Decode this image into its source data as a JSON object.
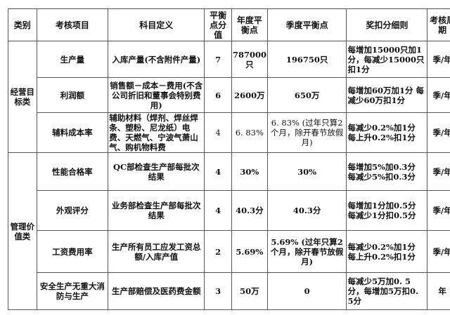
{
  "headers": [
    "类别",
    "考核项目",
    "科目定义",
    "平衡点分值",
    "年度平衡点",
    "季度平衡点",
    "奖扣分细则",
    "考核周期"
  ],
  "groups": [
    "经营目标类",
    "管理价值类"
  ],
  "rows": [
    {
      "item": "生产量",
      "def": "入库产量(不含附件产量)",
      "score": "7",
      "annual": "787000只",
      "quarter": "196750只",
      "rule": "每增加15000只加1分，每减少15000只扣1分",
      "period": "季/年"
    },
    {
      "item": "利润额",
      "def": "销售额－成本－费用(不含公司折旧和董事会特别费用)",
      "score": "6",
      "annual": "2600万",
      "quarter": "650万",
      "rule": "每增加60万加1分 每减少60万扣1分",
      "period": "季/年"
    },
    {
      "item": "辅料成本率",
      "def": "辅助材料（焊剂、焊丝焊条、塑粉、尼龙纸）电费、天燃气、宁波气萧山气、购机物料费",
      "score": "4",
      "annual": "6. 83%",
      "quarter": "6. 83% (过年只算2个月，除开春节放假月)",
      "rule": "每减少0.2%加1分 每上升0.2%扣1分",
      "period": "季/年"
    },
    {
      "item": "性能合格率",
      "def": "QC部检查生产部每批次结果",
      "score": "4",
      "annual": "30%",
      "quarter": "30%",
      "rule": "每增加5%加0.3分 每减少5%扣0.3分",
      "period": "季/年"
    },
    {
      "item": "外观评分",
      "def": "业务部检查生产部每批次结果",
      "score": "4",
      "annual": "40.3分",
      "quarter": "40.3分",
      "rule": "每增加1分加0.5分 每减少1分扣0.5分",
      "period": "季/年"
    },
    {
      "item": "工资费用率",
      "def": "生产所有员工应发工资总额/入库产值",
      "score": "2",
      "annual": "5.69%",
      "quarter": "5.69% (过年只算2个月，除开春节放假月)",
      "rule": "每减少0.2%加1分 每上升0.2%扣1分",
      "period": "季/年"
    },
    {
      "item": "安全生产无重大消防与生产",
      "def": "生产部赔偿及医药费金额",
      "score": "3",
      "annual": "50万",
      "quarter": "0",
      "rule": "每减少5万加0. 5分，每增加5万扣0. 5分",
      "period": "年"
    }
  ]
}
